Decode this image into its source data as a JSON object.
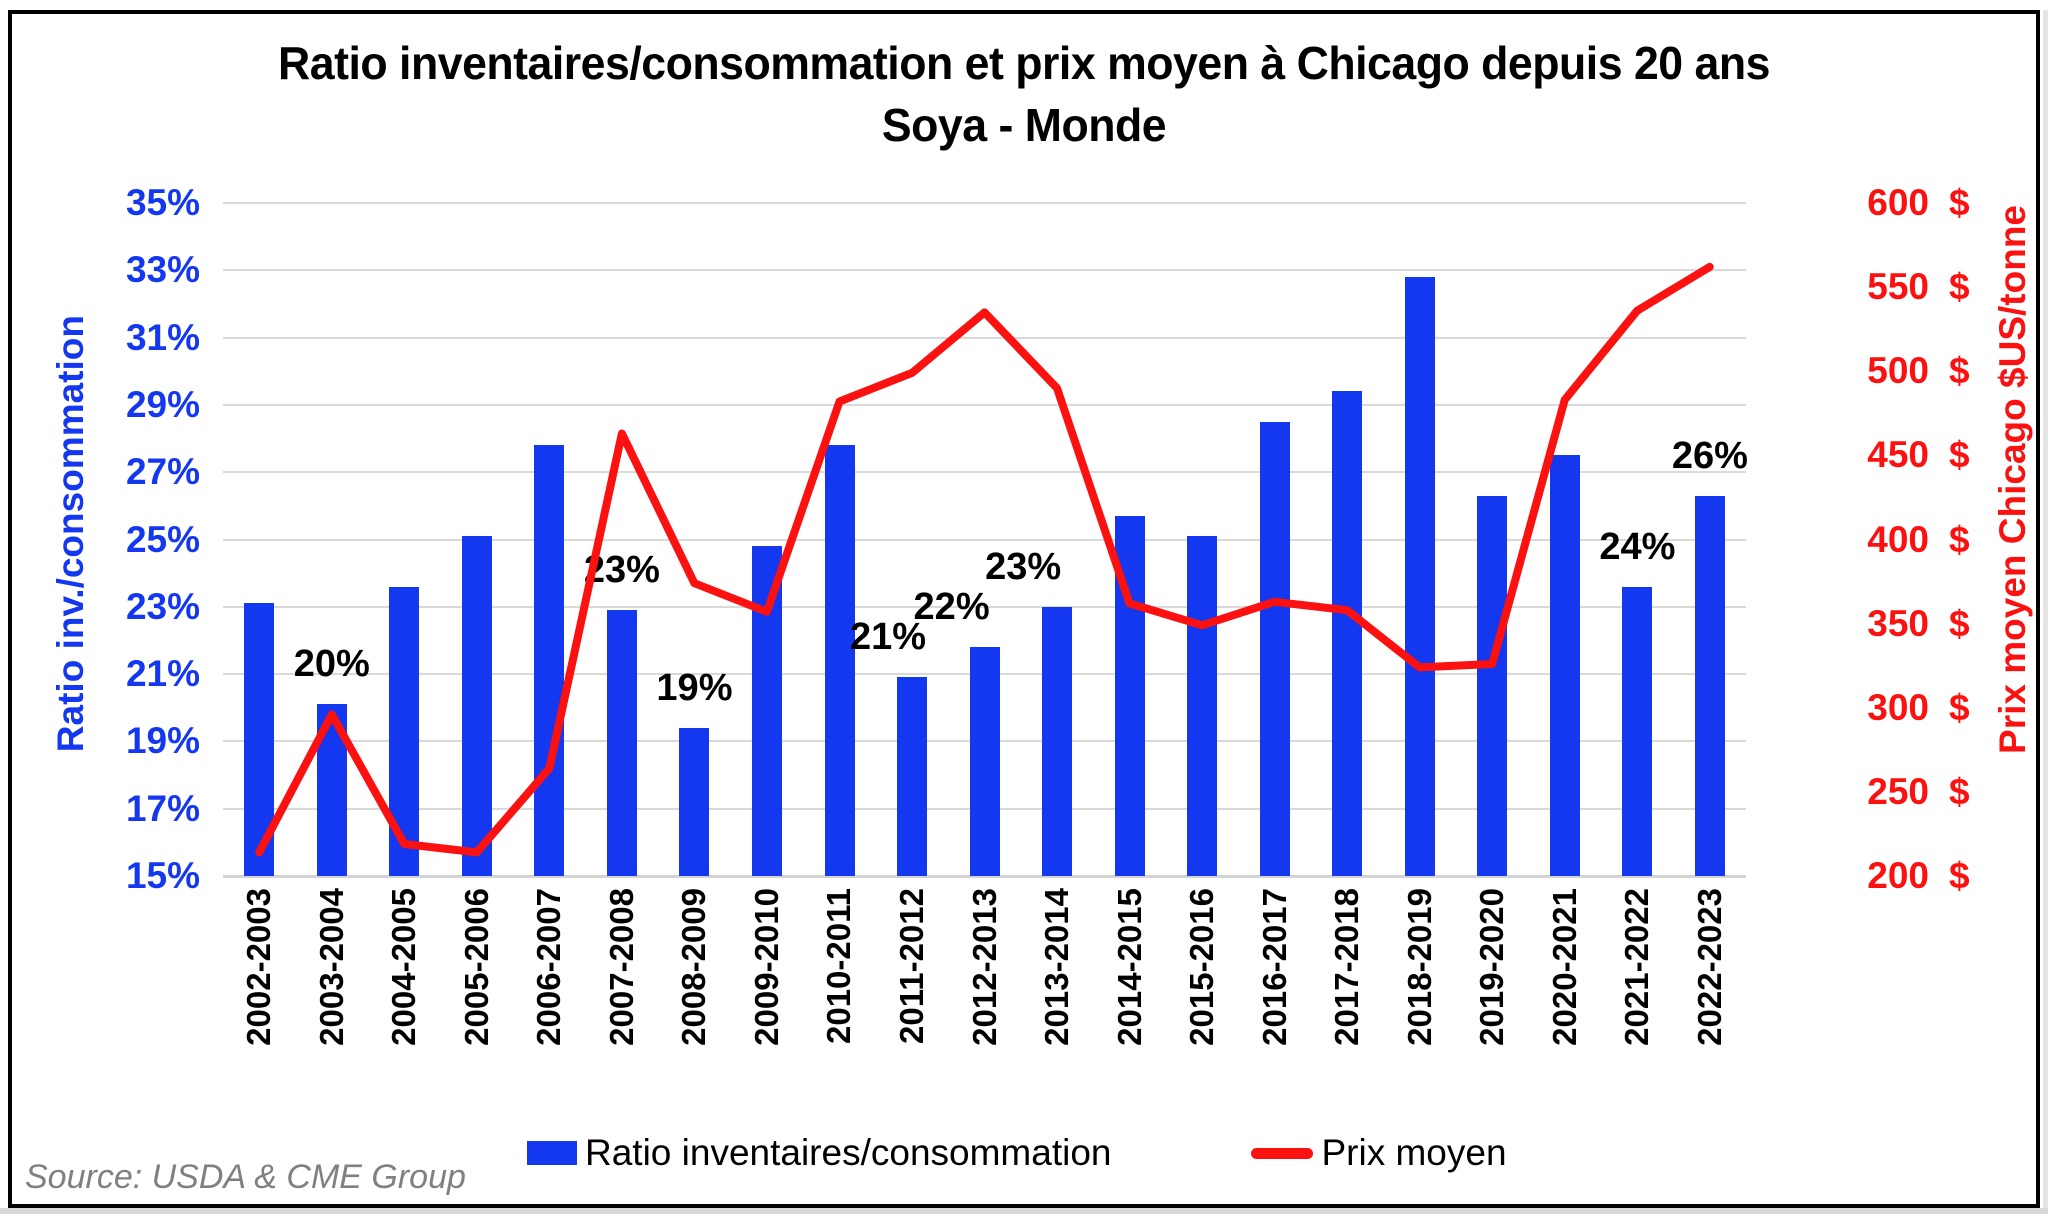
{
  "title": {
    "line1": "Ratio inventaires/consommation et prix moyen à Chicago depuis 20 ans",
    "line2": "Soya - Monde"
  },
  "left_axis": {
    "title": "Ratio inv./consommation",
    "ticks": [
      "35%",
      "33%",
      "31%",
      "29%",
      "27%",
      "25%",
      "23%",
      "21%",
      "19%",
      "17%",
      "15%"
    ],
    "color": "#1437f0"
  },
  "right_axis": {
    "title": "Prix moyen Chicago $US/tonne",
    "tick_values": [
      "600",
      "550",
      "500",
      "450",
      "400",
      "350",
      "300",
      "250",
      "200"
    ],
    "suffix": "$",
    "color": "#fa1110"
  },
  "legend": {
    "items": [
      {
        "label": "Ratio inventaires/consommation",
        "swatch": "bar-swatch"
      },
      {
        "label": "Prix moyen",
        "swatch": "line-swatch"
      }
    ]
  },
  "source": "Source: USDA & CME Group",
  "colors": {
    "bar": "#1437f0",
    "line": "#fa1110",
    "gridline": "#d9d9d9",
    "bar_label": "#000000"
  },
  "chart_data": {
    "type": "bar",
    "subtype": "combo bar+line, dual axis",
    "title": "Ratio inventaires/consommation et prix moyen à Chicago depuis 20 ans — Soya - Monde",
    "categories": [
      "2002-2003",
      "2003-2004",
      "2004-2005",
      "2005-2006",
      "2006-2007",
      "2007-2008",
      "2008-2009",
      "2009-2010",
      "2010-2011",
      "2011-2012",
      "2012-2013",
      "2013-2014",
      "2014-2015",
      "2015-2016",
      "2016-2017",
      "2017-2018",
      "2018-2019",
      "2019-2020",
      "2020-2021",
      "2021-2022",
      "2022-2023"
    ],
    "series": [
      {
        "name": "Ratio inventaires/consommation",
        "type": "bar",
        "axis": "left",
        "unit": "%",
        "values": [
          23.1,
          20.1,
          23.6,
          25.1,
          27.8,
          22.9,
          19.4,
          24.8,
          27.8,
          20.9,
          21.8,
          23.0,
          25.7,
          25.1,
          28.5,
          29.4,
          32.8,
          26.3,
          27.5,
          23.6,
          26.3
        ]
      },
      {
        "name": "Prix moyen",
        "type": "line",
        "axis": "right",
        "unit": "$US/tonne",
        "values": [
          214,
          296,
          219,
          214,
          264,
          463,
          374,
          357,
          482,
          499,
          535,
          490,
          362,
          349,
          363,
          358,
          324,
          326,
          483,
          536,
          562
        ]
      }
    ],
    "bar_labels": [
      {
        "index": 1,
        "text": "20%",
        "dx": 0
      },
      {
        "index": 5,
        "text": "23%",
        "dx": 0
      },
      {
        "index": 6,
        "text": "19%",
        "dx": 0
      },
      {
        "index": 9,
        "text": "21%",
        "dx": -24
      },
      {
        "index": 10,
        "text": "22%",
        "dx": -33
      },
      {
        "index": 11,
        "text": "23%",
        "dx": -34
      },
      {
        "index": 19,
        "text": "24%",
        "dx": 0
      },
      {
        "index": 20,
        "text": "26%",
        "dx": 0
      }
    ],
    "xlabel": "",
    "ylabel_left": "Ratio inv./consommation",
    "ylabel_right": "Prix moyen Chicago $US/tonne",
    "left_ylim": [
      15,
      35
    ],
    "right_ylim": [
      200,
      600
    ],
    "left_tick_step": 2,
    "right_tick_step": 50,
    "grid": "horizontal, every 2% of left axis",
    "legend_position": "bottom"
  }
}
